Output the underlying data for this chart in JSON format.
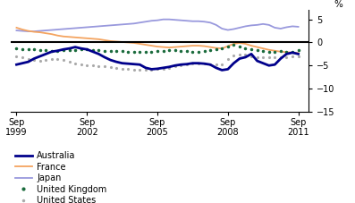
{
  "title": "",
  "ylabel": "%",
  "ylim": [
    -15,
    7
  ],
  "yticks": [
    -15,
    -10,
    -5,
    0,
    5
  ],
  "xlim": [
    1999.5,
    2012.2
  ],
  "xticks": [
    1999.75,
    2002.75,
    2005.75,
    2008.75,
    2011.75
  ],
  "xticklabels": [
    "Sep\n1999",
    "Sep\n2002",
    "Sep\n2005",
    "Sep\n2008",
    "Sep\n2011"
  ],
  "zero_line_y": 0,
  "colors": {
    "Australia": "#00008B",
    "France": "#F4A460",
    "Japan": "#9999DD",
    "United Kingdom": "#1a6b3c",
    "United States": "#AAAAAA"
  },
  "australia": {
    "x": [
      1999.75,
      2000.0,
      2000.25,
      2000.5,
      2000.75,
      2001.0,
      2001.25,
      2001.5,
      2001.75,
      2002.0,
      2002.25,
      2002.5,
      2002.75,
      2003.0,
      2003.25,
      2003.5,
      2003.75,
      2004.0,
      2004.25,
      2004.5,
      2004.75,
      2005.0,
      2005.25,
      2005.5,
      2005.75,
      2006.0,
      2006.25,
      2006.5,
      2006.75,
      2007.0,
      2007.25,
      2007.5,
      2007.75,
      2008.0,
      2008.25,
      2008.5,
      2008.75,
      2009.0,
      2009.25,
      2009.5,
      2009.75,
      2010.0,
      2010.25,
      2010.5,
      2010.75,
      2011.0,
      2011.25,
      2011.5,
      2011.75
    ],
    "y": [
      -4.8,
      -4.5,
      -4.2,
      -3.5,
      -3.0,
      -2.5,
      -2.0,
      -1.8,
      -1.5,
      -1.3,
      -1.0,
      -1.3,
      -1.5,
      -2.0,
      -2.5,
      -3.2,
      -3.8,
      -4.2,
      -4.5,
      -4.6,
      -4.7,
      -4.8,
      -5.5,
      -5.8,
      -5.7,
      -5.5,
      -5.3,
      -5.0,
      -4.8,
      -4.7,
      -4.5,
      -4.5,
      -4.6,
      -4.8,
      -5.5,
      -6.0,
      -5.8,
      -4.5,
      -3.5,
      -3.2,
      -2.5,
      -4.0,
      -4.5,
      -5.0,
      -4.8,
      -3.5,
      -2.5,
      -2.2,
      -2.5
    ]
  },
  "france": {
    "x": [
      1999.75,
      2000.0,
      2000.25,
      2000.5,
      2000.75,
      2001.0,
      2001.25,
      2001.5,
      2001.75,
      2002.0,
      2002.25,
      2002.5,
      2002.75,
      2003.0,
      2003.25,
      2003.5,
      2003.75,
      2004.0,
      2004.25,
      2004.5,
      2004.75,
      2005.0,
      2005.25,
      2005.5,
      2005.75,
      2006.0,
      2006.25,
      2006.5,
      2006.75,
      2007.0,
      2007.25,
      2007.5,
      2007.75,
      2008.0,
      2008.25,
      2008.5,
      2008.75,
      2009.0,
      2009.25,
      2009.5,
      2009.75,
      2010.0,
      2010.25,
      2010.5,
      2010.75,
      2011.0,
      2011.25,
      2011.5,
      2011.75
    ],
    "y": [
      3.2,
      2.8,
      2.5,
      2.3,
      2.2,
      2.0,
      1.8,
      1.5,
      1.3,
      1.2,
      1.1,
      1.0,
      0.9,
      0.8,
      0.7,
      0.5,
      0.3,
      0.2,
      0.1,
      0.0,
      -0.1,
      -0.3,
      -0.5,
      -0.7,
      -0.9,
      -1.0,
      -1.1,
      -1.0,
      -0.9,
      -0.8,
      -0.7,
      -0.7,
      -0.8,
      -1.0,
      -1.2,
      -1.3,
      -0.8,
      -0.3,
      -0.1,
      -0.3,
      -0.7,
      -1.0,
      -1.3,
      -1.6,
      -1.8,
      -2.0,
      -2.1,
      -2.2,
      -2.3
    ]
  },
  "japan": {
    "x": [
      1999.75,
      2000.0,
      2000.25,
      2000.5,
      2000.75,
      2001.0,
      2001.25,
      2001.5,
      2001.75,
      2002.0,
      2002.25,
      2002.5,
      2002.75,
      2003.0,
      2003.25,
      2003.5,
      2003.75,
      2004.0,
      2004.25,
      2004.5,
      2004.75,
      2005.0,
      2005.25,
      2005.5,
      2005.75,
      2006.0,
      2006.25,
      2006.5,
      2006.75,
      2007.0,
      2007.25,
      2007.5,
      2007.75,
      2008.0,
      2008.25,
      2008.5,
      2008.75,
      2009.0,
      2009.25,
      2009.5,
      2009.75,
      2010.0,
      2010.25,
      2010.5,
      2010.75,
      2011.0,
      2011.25,
      2011.5,
      2011.75
    ],
    "y": [
      2.6,
      2.5,
      2.4,
      2.4,
      2.5,
      2.6,
      2.7,
      2.8,
      2.9,
      3.0,
      3.1,
      3.2,
      3.3,
      3.4,
      3.5,
      3.6,
      3.7,
      3.8,
      3.9,
      4.0,
      4.1,
      4.3,
      4.5,
      4.7,
      4.8,
      5.0,
      5.0,
      4.9,
      4.8,
      4.7,
      4.6,
      4.6,
      4.5,
      4.3,
      3.8,
      3.0,
      2.7,
      2.9,
      3.2,
      3.5,
      3.7,
      3.8,
      4.0,
      3.8,
      3.2,
      3.0,
      3.3,
      3.5,
      3.4
    ]
  },
  "uk": {
    "x": [
      1999.75,
      2000.0,
      2000.25,
      2000.5,
      2000.75,
      2001.0,
      2001.25,
      2001.5,
      2001.75,
      2002.0,
      2002.25,
      2002.5,
      2002.75,
      2003.0,
      2003.25,
      2003.5,
      2003.75,
      2004.0,
      2004.25,
      2004.5,
      2004.75,
      2005.0,
      2005.25,
      2005.5,
      2005.75,
      2006.0,
      2006.25,
      2006.5,
      2006.75,
      2007.0,
      2007.25,
      2007.5,
      2007.75,
      2008.0,
      2008.25,
      2008.5,
      2008.75,
      2009.0,
      2009.25,
      2009.5,
      2009.75,
      2010.0,
      2010.25,
      2010.5,
      2010.75,
      2011.0,
      2011.25,
      2011.5,
      2011.75
    ],
    "y": [
      -1.3,
      -1.4,
      -1.4,
      -1.5,
      -1.6,
      -1.7,
      -1.8,
      -1.8,
      -1.7,
      -1.7,
      -1.6,
      -1.5,
      -1.5,
      -1.6,
      -1.7,
      -1.8,
      -1.8,
      -1.8,
      -1.9,
      -2.0,
      -2.0,
      -2.0,
      -2.1,
      -2.0,
      -1.9,
      -1.8,
      -1.7,
      -1.7,
      -1.8,
      -1.9,
      -2.0,
      -2.0,
      -1.9,
      -1.7,
      -1.5,
      -1.3,
      -0.8,
      -0.5,
      -0.8,
      -1.2,
      -1.5,
      -1.7,
      -1.8,
      -2.0,
      -2.0,
      -1.8,
      -2.0,
      -2.0,
      -1.6
    ]
  },
  "us": {
    "x": [
      1999.75,
      2000.0,
      2000.25,
      2000.5,
      2000.75,
      2001.0,
      2001.25,
      2001.5,
      2001.75,
      2002.0,
      2002.25,
      2002.5,
      2002.75,
      2003.0,
      2003.25,
      2003.5,
      2003.75,
      2004.0,
      2004.25,
      2004.5,
      2004.75,
      2005.0,
      2005.25,
      2005.5,
      2005.75,
      2006.0,
      2006.25,
      2006.5,
      2006.75,
      2007.0,
      2007.25,
      2007.5,
      2007.75,
      2008.0,
      2008.25,
      2008.5,
      2008.75,
      2009.0,
      2009.25,
      2009.5,
      2009.75,
      2010.0,
      2010.25,
      2010.5,
      2010.75,
      2011.0,
      2011.25,
      2011.5,
      2011.75
    ],
    "y": [
      -3.0,
      -3.3,
      -3.5,
      -3.8,
      -4.0,
      -3.8,
      -3.5,
      -3.5,
      -3.8,
      -4.2,
      -4.5,
      -4.7,
      -5.0,
      -5.0,
      -5.1,
      -5.2,
      -5.3,
      -5.5,
      -5.7,
      -5.8,
      -5.9,
      -6.0,
      -6.0,
      -5.9,
      -5.8,
      -5.7,
      -5.5,
      -5.2,
      -4.9,
      -4.7,
      -4.5,
      -4.5,
      -4.6,
      -4.7,
      -4.8,
      -4.7,
      -3.5,
      -2.8,
      -2.6,
      -2.7,
      -3.0,
      -3.2,
      -3.3,
      -3.3,
      -3.3,
      -3.3,
      -3.2,
      -3.1,
      -3.0
    ]
  }
}
